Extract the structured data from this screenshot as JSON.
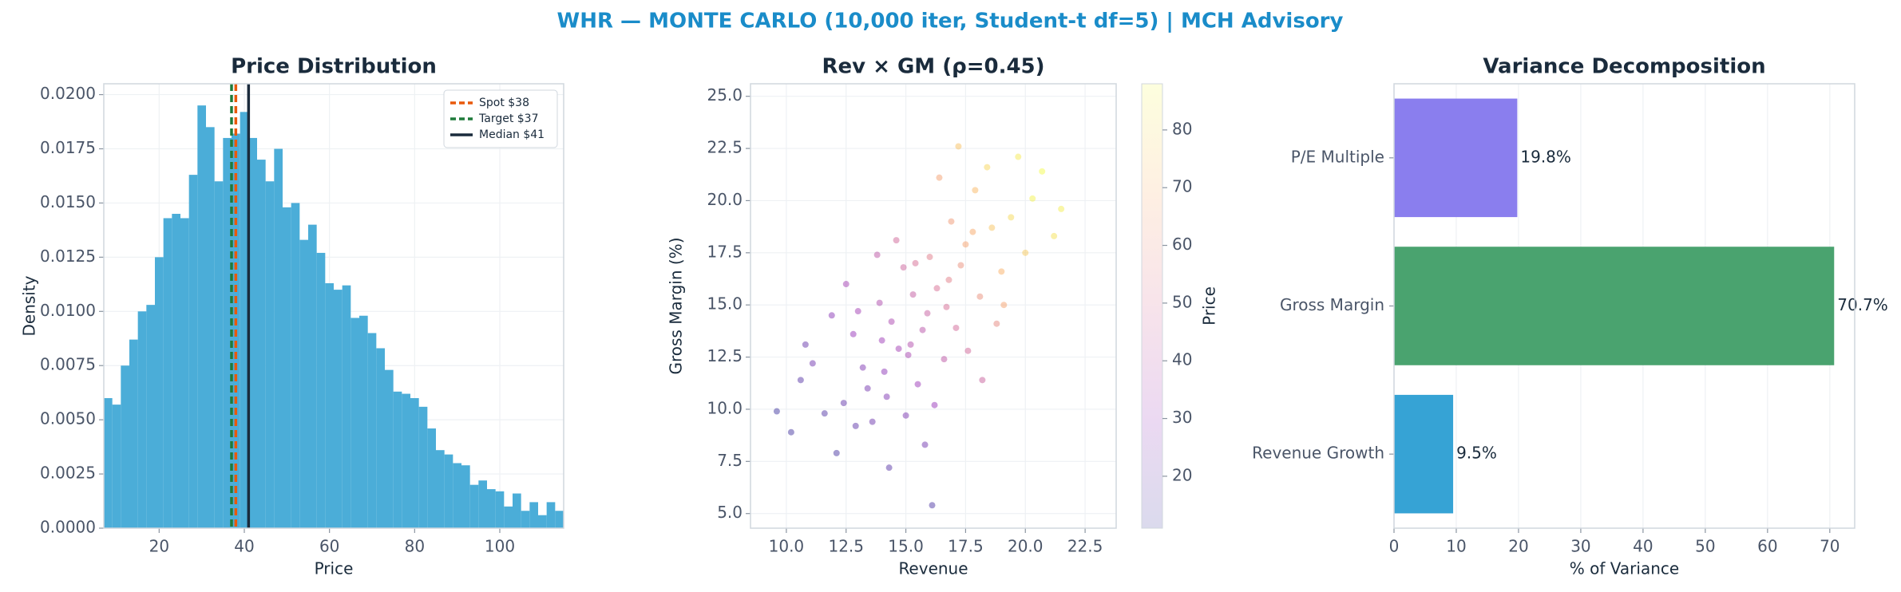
{
  "title": "WHR — MONTE CARLO (10,000 iter, Student-t df=5) | MCH Advisory",
  "chart_data": [
    {
      "type": "histogram",
      "title": "Price Distribution",
      "x_label": "Price",
      "y_label": "Density",
      "color": "#4badd8",
      "grid": true,
      "legend": "upper right",
      "bins": [
        7,
        9,
        11,
        13,
        15,
        17,
        19,
        21,
        23,
        25,
        27,
        29,
        31,
        33,
        35,
        37,
        39,
        41,
        43,
        45,
        47,
        49,
        51,
        53,
        55,
        57,
        59,
        61,
        63,
        65,
        67,
        69,
        71,
        73,
        75,
        77,
        79,
        81,
        83,
        85,
        87,
        89,
        91,
        93,
        95,
        97,
        99,
        101,
        103,
        105,
        107,
        109,
        111,
        113,
        115
      ],
      "values": [
        0.006,
        0.0057,
        0.0075,
        0.0087,
        0.01,
        0.0103,
        0.0125,
        0.0143,
        0.0145,
        0.0143,
        0.0163,
        0.0195,
        0.0185,
        0.016,
        0.018,
        0.0182,
        0.0192,
        0.018,
        0.017,
        0.016,
        0.0175,
        0.0148,
        0.015,
        0.0133,
        0.014,
        0.0127,
        0.0113,
        0.011,
        0.0112,
        0.0097,
        0.0098,
        0.009,
        0.0083,
        0.0073,
        0.0063,
        0.0062,
        0.006,
        0.0056,
        0.0046,
        0.0036,
        0.0034,
        0.003,
        0.0029,
        0.002,
        0.0022,
        0.0018,
        0.0017,
        0.001,
        0.0016,
        0.0008,
        0.0012,
        0.0006,
        0.0012,
        0.0008
      ],
      "xlim": [
        7,
        115
      ],
      "xticks": [
        20,
        40,
        60,
        80,
        100
      ],
      "ylim": [
        0,
        0.0205
      ],
      "yticks": [
        {
          "value": 0,
          "label": "0.0000"
        },
        {
          "value": 0.0025,
          "label": "0.0025"
        },
        {
          "value": 0.005,
          "label": "0.0050"
        },
        {
          "value": 0.0075,
          "label": "0.0075"
        },
        {
          "value": 0.01,
          "label": "0.0100"
        },
        {
          "value": 0.0125,
          "label": "0.0125"
        },
        {
          "value": 0.015,
          "label": "0.0150"
        },
        {
          "value": 0.0175,
          "label": "0.0175"
        },
        {
          "value": 0.02,
          "label": "0.0200"
        }
      ],
      "vlines": [
        {
          "name": "Spot $38",
          "x": 38,
          "color": "#e8590c",
          "dashed": true
        },
        {
          "name": "Target $37",
          "x": 37,
          "color": "#1f7a3a",
          "dashed": true
        },
        {
          "name": "Median $41",
          "x": 41,
          "color": "#1a2b3c",
          "dashed": false
        }
      ]
    },
    {
      "type": "scatter",
      "title": "Rev × GM (ρ=0.45)",
      "x_label": "Revenue",
      "y_label": "Gross Margin (%)",
      "grid": true,
      "colormap": "plasma",
      "color_label": "Price",
      "x": [
        15.2,
        14.1,
        16.8,
        17.5,
        13.2,
        18.6,
        12.4,
        15.9,
        16.3,
        14.7,
        19.4,
        11.6,
        17.1,
        13.9,
        15.0,
        20.3,
        10.2,
        16.0,
        18.1,
        14.4,
        12.8,
        17.9,
        15.5,
        13.6,
        19.0,
        16.6,
        14.9,
        21.2,
        11.1,
        18.4,
        15.7,
        12.1,
        17.3,
        14.2,
        16.9,
        20.0,
        13.0,
        15.3,
        10.6,
        18.8,
        16.2,
        14.6,
        19.7,
        13.4,
        17.6,
        12.5,
        15.8,
        21.5,
        16.4,
        14.0,
        11.9,
        17.8,
        15.1,
        9.6,
        18.2,
        13.8,
        16.7,
        20.7,
        12.9,
        19.1,
        15.4,
        14.3,
        17.2,
        10.8,
        16.1
      ],
      "values": [
        13.1,
        11.8,
        16.2,
        17.9,
        12.0,
        18.7,
        10.3,
        14.6,
        15.8,
        12.9,
        19.2,
        9.8,
        13.9,
        15.1,
        9.7,
        20.1,
        8.9,
        17.3,
        15.4,
        14.2,
        13.6,
        20.5,
        11.2,
        9.4,
        16.6,
        12.4,
        16.8,
        18.3,
        12.2,
        21.6,
        13.8,
        7.9,
        16.9,
        10.6,
        19.0,
        17.5,
        14.7,
        15.5,
        11.4,
        14.1,
        10.2,
        18.1,
        22.1,
        11.0,
        12.8,
        16.0,
        8.3,
        19.6,
        21.1,
        13.3,
        14.5,
        18.5,
        12.6,
        9.9,
        11.4,
        17.4,
        14.9,
        21.4,
        9.2,
        15.0,
        17.0,
        7.2,
        22.6,
        13.1,
        5.4
      ],
      "color_values": [
        38,
        28,
        55,
        66,
        25,
        75,
        19,
        44,
        50,
        33,
        80,
        16,
        48,
        37,
        24,
        86,
        13,
        54,
        60,
        36,
        30,
        72,
        31,
        21,
        70,
        41,
        46,
        82,
        22,
        79,
        40,
        14,
        60,
        25,
        63,
        76,
        33,
        43,
        17,
        58,
        30,
        47,
        84,
        23,
        47,
        34,
        22,
        85,
        65,
        32,
        27,
        68,
        35,
        12,
        45,
        41,
        49,
        88,
        18,
        66,
        49,
        17,
        74,
        20,
        15
      ],
      "xlim": [
        8.5,
        23.8
      ],
      "xticks": [
        {
          "value": 10,
          "label": "10.0"
        },
        12.5,
        {
          "value": 15,
          "label": "15.0"
        },
        17.5,
        {
          "value": 20,
          "label": "20.0"
        },
        22.5
      ],
      "ylim": [
        4.3,
        25.6
      ],
      "yticks": [
        {
          "value": 5,
          "label": "5.0"
        },
        7.5,
        {
          "value": 10,
          "label": "10.0"
        },
        12.5,
        {
          "value": 15,
          "label": "15.0"
        },
        17.5,
        {
          "value": 20,
          "label": "20.0"
        },
        22.5,
        {
          "value": 25,
          "label": "25.0"
        }
      ],
      "clim": [
        11,
        88
      ],
      "cticks": [
        20,
        30,
        40,
        50,
        60,
        70,
        80
      ]
    },
    {
      "type": "barh",
      "title": "Variance Decomposition",
      "x_label": "% of Variance",
      "grid": true,
      "categories": [
        "P/E Multiple",
        "Gross Margin",
        "Revenue Growth"
      ],
      "values": [
        19.8,
        70.7,
        9.5
      ],
      "value_labels": [
        "19.8%",
        "70.7%",
        "9.5%"
      ],
      "colors": [
        "#8a7eee",
        "#4aa36f",
        "#36a3d5"
      ],
      "xlim": [
        0,
        74
      ],
      "xticks": [
        0,
        10,
        20,
        30,
        40,
        50,
        60,
        70
      ]
    }
  ]
}
